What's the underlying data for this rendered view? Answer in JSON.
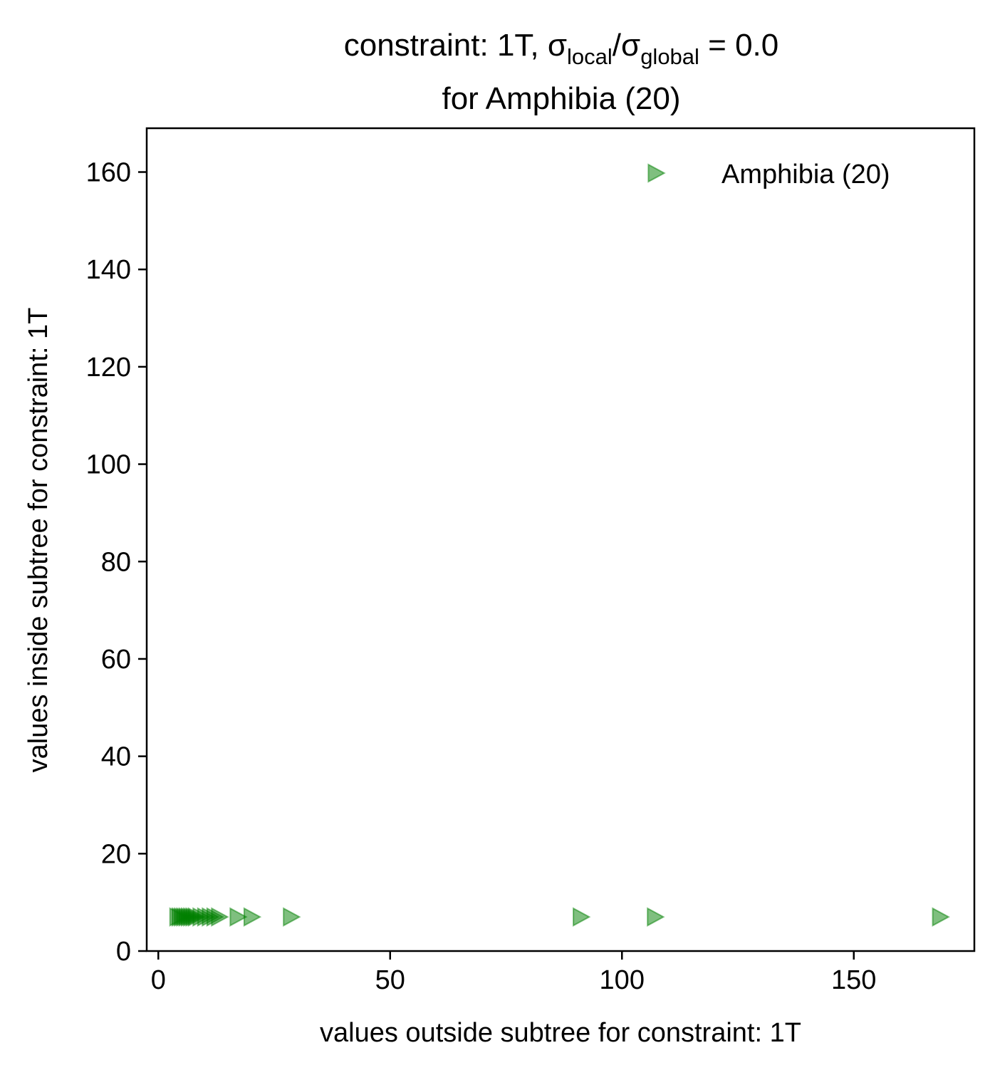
{
  "chart_data": {
    "type": "scatter",
    "title_parts": {
      "prefix": "constraint: 1T, σ",
      "sub1": "local",
      "mid": "/σ",
      "sub2": "global",
      "suffix": " =  0.0",
      "line2": "for Amphibia (20)"
    },
    "xlabel": "values outside subtree for constraint: 1T",
    "ylabel": "values inside subtree for constraint: 1T",
    "xlim": [
      -2.5,
      176
    ],
    "ylim": [
      0,
      169
    ],
    "xticks": [
      0,
      50,
      100,
      150
    ],
    "yticks": [
      0,
      20,
      40,
      60,
      80,
      100,
      120,
      140,
      160
    ],
    "grid": false,
    "legend_position": "top-right",
    "series": [
      {
        "name": "Amphibia (20)",
        "marker": "triangle-right",
        "color": "#008000",
        "alpha": 0.5,
        "points": [
          {
            "x": 4,
            "y": 7
          },
          {
            "x": 4.5,
            "y": 7
          },
          {
            "x": 5,
            "y": 7
          },
          {
            "x": 5.5,
            "y": 7
          },
          {
            "x": 6,
            "y": 7
          },
          {
            "x": 6.5,
            "y": 7
          },
          {
            "x": 7,
            "y": 7
          },
          {
            "x": 7.5,
            "y": 7
          },
          {
            "x": 8,
            "y": 7
          },
          {
            "x": 9,
            "y": 7
          },
          {
            "x": 10,
            "y": 7
          },
          {
            "x": 11,
            "y": 7
          },
          {
            "x": 12,
            "y": 7
          },
          {
            "x": 13,
            "y": 7
          },
          {
            "x": 17,
            "y": 7
          },
          {
            "x": 20,
            "y": 7
          },
          {
            "x": 28.5,
            "y": 7
          },
          {
            "x": 91,
            "y": 7
          },
          {
            "x": 107,
            "y": 7
          },
          {
            "x": 168.5,
            "y": 7
          }
        ]
      }
    ]
  }
}
